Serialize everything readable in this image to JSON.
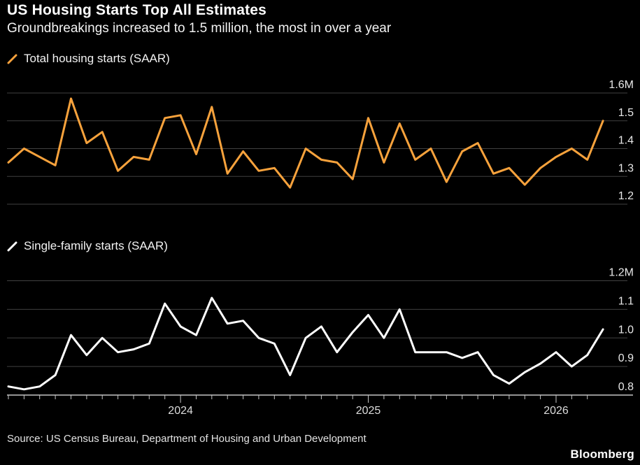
{
  "page": {
    "title": "US Housing Starts Top All Estimates",
    "subtitle": "Groundbreakings increased to 1.5 million, the most in over a year",
    "source": "Source: US Census Bureau, Department of Housing and Urban Development",
    "logo": "Bloomberg",
    "colors": {
      "background": "#000000",
      "gridline": "#414141",
      "axis_line": "#c4c4c4",
      "label_text": "#e8e8e8",
      "year_text": "#dcdcdc"
    }
  },
  "chart_data": [
    {
      "type": "line",
      "name": "total-housing-starts",
      "legend": "Total housing starts (SAAR)",
      "color": "#F7A23C",
      "unit": "millions (SAAR)",
      "ylim": [
        1.2,
        1.6
      ],
      "grid": true,
      "legend_position": "top-left",
      "yticks": [
        {
          "v": 1.6,
          "label": "1.6M"
        },
        {
          "v": 1.5,
          "label": "1.5"
        },
        {
          "v": 1.4,
          "label": "1.4"
        },
        {
          "v": 1.3,
          "label": "1.3"
        },
        {
          "v": 1.2,
          "label": "1.2"
        }
      ],
      "x": [
        "2023-02",
        "2023-03",
        "2023-04",
        "2023-05",
        "2023-06",
        "2023-07",
        "2023-08",
        "2023-09",
        "2023-10",
        "2023-11",
        "2023-12",
        "2024-01",
        "2024-02",
        "2024-03",
        "2024-04",
        "2024-05",
        "2024-06",
        "2024-07",
        "2024-08",
        "2024-09",
        "2024-10",
        "2024-11",
        "2024-12",
        "2025-01",
        "2025-02",
        "2025-03",
        "2025-04",
        "2025-05",
        "2025-06",
        "2025-07",
        "2025-08",
        "2025-09",
        "2025-10",
        "2025-11",
        "2025-12",
        "2026-01",
        "2026-02",
        "2026-03",
        "2026-04"
      ],
      "values": [
        1.35,
        1.4,
        1.37,
        1.34,
        1.58,
        1.42,
        1.46,
        1.32,
        1.37,
        1.36,
        1.51,
        1.52,
        1.38,
        1.55,
        1.31,
        1.39,
        1.32,
        1.33,
        1.26,
        1.4,
        1.36,
        1.35,
        1.29,
        1.51,
        1.35,
        1.49,
        1.36,
        1.4,
        1.28,
        1.39,
        1.42,
        1.31,
        1.33,
        1.27,
        1.33,
        1.37,
        1.4,
        1.36,
        1.5
      ]
    },
    {
      "type": "line",
      "name": "single-family-starts",
      "legend": "Single-family starts (SAAR)",
      "color": "#FFFFFF",
      "unit": "millions (SAAR)",
      "ylim": [
        0.8,
        1.2
      ],
      "grid": true,
      "legend_position": "top-left",
      "yticks": [
        {
          "v": 1.2,
          "label": "1.2M"
        },
        {
          "v": 1.1,
          "label": "1.1"
        },
        {
          "v": 1.0,
          "label": "1.0"
        },
        {
          "v": 0.9,
          "label": "0.9"
        },
        {
          "v": 0.8,
          "label": "0.8"
        }
      ],
      "xaxis_years": [
        "2024",
        "2025",
        "2026"
      ],
      "x": [
        "2023-02",
        "2023-03",
        "2023-04",
        "2023-05",
        "2023-06",
        "2023-07",
        "2023-08",
        "2023-09",
        "2023-10",
        "2023-11",
        "2023-12",
        "2024-01",
        "2024-02",
        "2024-03",
        "2024-04",
        "2024-05",
        "2024-06",
        "2024-07",
        "2024-08",
        "2024-09",
        "2024-10",
        "2024-11",
        "2024-12",
        "2025-01",
        "2025-02",
        "2025-03",
        "2025-04",
        "2025-05",
        "2025-06",
        "2025-07",
        "2025-08",
        "2025-09",
        "2025-10",
        "2025-11",
        "2025-12",
        "2026-01",
        "2026-02",
        "2026-03",
        "2026-04"
      ],
      "values": [
        0.83,
        0.82,
        0.83,
        0.87,
        1.01,
        0.94,
        1.0,
        0.95,
        0.96,
        0.98,
        1.12,
        1.04,
        1.01,
        1.14,
        1.05,
        1.06,
        1.0,
        0.98,
        0.87,
        1.0,
        1.04,
        0.95,
        1.02,
        1.08,
        1.0,
        1.1,
        0.95,
        0.95,
        0.95,
        0.93,
        0.95,
        0.87,
        0.84,
        0.88,
        0.91,
        0.95,
        0.9,
        0.94,
        1.03
      ]
    }
  ]
}
